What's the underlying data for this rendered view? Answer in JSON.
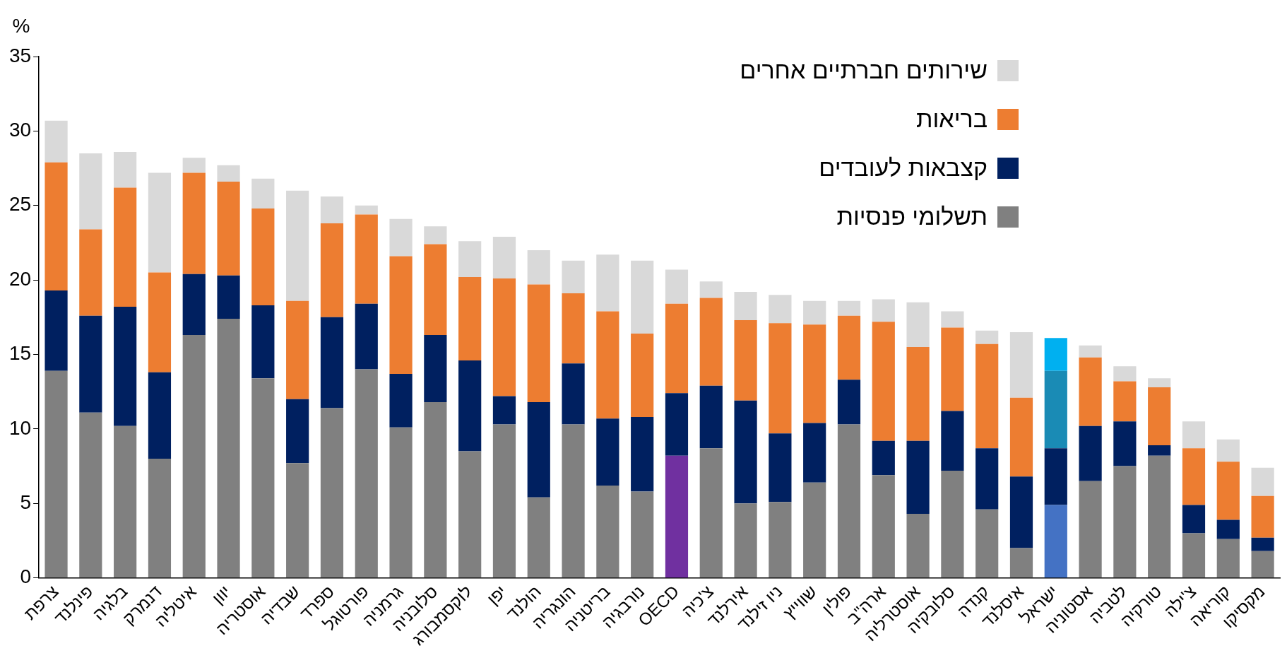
{
  "chart_data": {
    "type": "bar",
    "stacked": true,
    "ylabel": "%",
    "ylim": [
      0,
      35
    ],
    "yticks": [
      0,
      5,
      10,
      15,
      20,
      25,
      30,
      35
    ],
    "grid": false,
    "legend": "top right",
    "categories": [
      "צרפת",
      "פינלנד",
      "בלגיה",
      "דנמרק",
      "איטליה",
      "יוון",
      "אוסטריה",
      "שבדיה",
      "ספרד",
      "פורטוגל",
      "גרמניה",
      "סלובניה",
      "לוקסמבורג",
      "יפן",
      "הולנד",
      "הונגריה",
      "בריטניה",
      "נורבגיה",
      "OECD",
      "צ'כיה",
      "אירלנד",
      "ניו זילנד",
      "שווייץ",
      "פולין",
      "ארה\"ב",
      "אוסטרליה",
      "סלובקיה",
      "קנדה",
      "איסלנד",
      "ישראל",
      "אסטוניה",
      "לטביה",
      "טורקיה",
      "צ'ילה",
      "קוריאה",
      "מקסיקו"
    ],
    "series": [
      {
        "name": "תשלומי פנסיות",
        "color": "#808080",
        "colors": [
          "#808080",
          "#808080",
          "#808080",
          "#808080",
          "#808080",
          "#808080",
          "#808080",
          "#808080",
          "#808080",
          "#808080",
          "#808080",
          "#808080",
          "#808080",
          "#808080",
          "#808080",
          "#808080",
          "#808080",
          "#808080",
          "#7030a0",
          "#808080",
          "#808080",
          "#808080",
          "#808080",
          "#808080",
          "#808080",
          "#808080",
          "#808080",
          "#808080",
          "#808080",
          "#4472c4",
          "#808080",
          "#808080",
          "#808080",
          "#808080",
          "#808080",
          "#808080"
        ],
        "values": [
          13.9,
          11.1,
          10.2,
          8.0,
          16.3,
          17.4,
          13.4,
          7.7,
          11.4,
          14.0,
          10.1,
          11.8,
          8.5,
          10.3,
          5.4,
          10.3,
          6.2,
          5.8,
          8.2,
          8.7,
          5.0,
          5.1,
          6.4,
          10.3,
          6.9,
          4.3,
          7.2,
          4.6,
          2.0,
          4.9,
          6.5,
          7.5,
          8.2,
          3.0,
          2.6,
          1.8
        ]
      },
      {
        "name": "קצבאות לעובדים",
        "color": "#002060",
        "values": [
          5.4,
          6.5,
          8.0,
          5.8,
          4.1,
          2.9,
          4.9,
          4.3,
          6.1,
          4.4,
          3.6,
          4.5,
          6.1,
          1.9,
          6.4,
          4.1,
          4.5,
          5.0,
          4.2,
          4.2,
          6.9,
          4.6,
          4.0,
          3.0,
          2.3,
          4.9,
          4.0,
          4.1,
          4.8,
          3.8,
          3.7,
          3.0,
          0.7,
          1.9,
          1.3,
          0.9
        ]
      },
      {
        "name": "בריאות",
        "color": "#ed7d31",
        "colors": [
          "#ed7d31",
          "#ed7d31",
          "#ed7d31",
          "#ed7d31",
          "#ed7d31",
          "#ed7d31",
          "#ed7d31",
          "#ed7d31",
          "#ed7d31",
          "#ed7d31",
          "#ed7d31",
          "#ed7d31",
          "#ed7d31",
          "#ed7d31",
          "#ed7d31",
          "#ed7d31",
          "#ed7d31",
          "#ed7d31",
          "#ed7d31",
          "#ed7d31",
          "#ed7d31",
          "#ed7d31",
          "#ed7d31",
          "#ed7d31",
          "#ed7d31",
          "#ed7d31",
          "#ed7d31",
          "#ed7d31",
          "#ed7d31",
          "#1a8bb5",
          "#ed7d31",
          "#ed7d31",
          "#ed7d31",
          "#ed7d31",
          "#ed7d31",
          "#ed7d31"
        ],
        "values": [
          8.6,
          5.8,
          8.0,
          6.7,
          6.8,
          6.3,
          6.5,
          6.6,
          6.3,
          6.0,
          7.9,
          6.1,
          5.6,
          7.9,
          7.9,
          4.7,
          7.2,
          5.6,
          6.0,
          5.9,
          5.4,
          7.4,
          6.6,
          4.3,
          8.0,
          6.3,
          5.6,
          7.0,
          5.3,
          5.2,
          4.6,
          2.7,
          3.9,
          3.8,
          3.9,
          2.8
        ]
      },
      {
        "name": "שירותים חברתיים אחרים",
        "color": "#d9d9d9",
        "colors": [
          "#d9d9d9",
          "#d9d9d9",
          "#d9d9d9",
          "#d9d9d9",
          "#d9d9d9",
          "#d9d9d9",
          "#d9d9d9",
          "#d9d9d9",
          "#d9d9d9",
          "#d9d9d9",
          "#d9d9d9",
          "#d9d9d9",
          "#d9d9d9",
          "#d9d9d9",
          "#d9d9d9",
          "#d9d9d9",
          "#d9d9d9",
          "#d9d9d9",
          "#d9d9d9",
          "#d9d9d9",
          "#d9d9d9",
          "#d9d9d9",
          "#d9d9d9",
          "#d9d9d9",
          "#d9d9d9",
          "#d9d9d9",
          "#d9d9d9",
          "#d9d9d9",
          "#d9d9d9",
          "#00b0f0",
          "#d9d9d9",
          "#d9d9d9",
          "#d9d9d9",
          "#d9d9d9",
          "#d9d9d9",
          "#d9d9d9"
        ],
        "values": [
          2.8,
          5.1,
          2.4,
          6.7,
          1.0,
          1.1,
          2.0,
          7.4,
          1.8,
          0.6,
          2.5,
          1.2,
          2.4,
          2.8,
          2.3,
          2.2,
          3.8,
          4.9,
          2.3,
          1.1,
          1.9,
          1.9,
          1.6,
          1.0,
          1.5,
          3.0,
          1.1,
          0.9,
          4.4,
          2.2,
          0.8,
          1.0,
          0.6,
          1.8,
          1.5,
          1.9
        ]
      }
    ]
  }
}
